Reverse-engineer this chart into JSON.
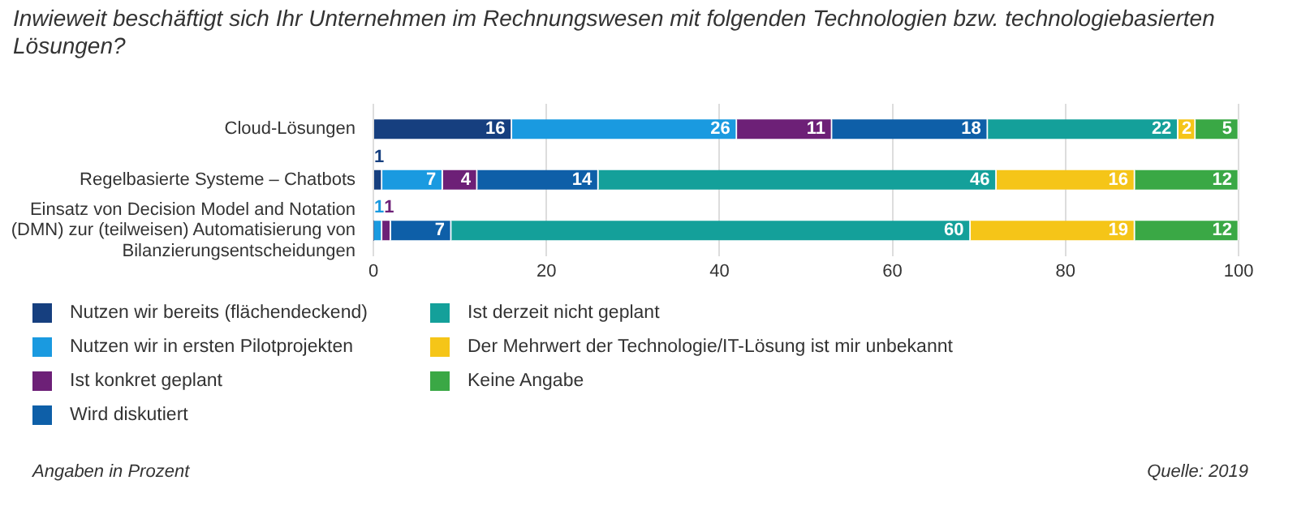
{
  "chart_data": {
    "type": "bar",
    "orientation": "horizontal",
    "stacked": true,
    "title": "Inwieweit beschäftigt sich Ihr Unternehmen im Rechnungswesen mit folgenden Technologien bzw. technologiebasierten Lösungen?",
    "categories": [
      "Cloud-Lösungen",
      "Regelbasierte Systeme – Chatbots",
      "Einsatz von Decision Model and Notation (DMN) zur (teilweisen) Automatisierung von Bilanzierungsentscheidungen"
    ],
    "series": [
      {
        "name": "Nutzen wir bereits (flächendeckend)",
        "color": "#163f7f",
        "values": [
          16,
          1,
          0
        ],
        "value_labels": [
          "16",
          "1",
          null
        ]
      },
      {
        "name": "Nutzen wir in ersten Pilotprojekten",
        "color": "#1a9ae0",
        "values": [
          26,
          7,
          1
        ],
        "value_labels": [
          "26",
          "7",
          "1"
        ]
      },
      {
        "name": "Ist konkret geplant",
        "color": "#6d2077",
        "values": [
          11,
          4,
          1
        ],
        "value_labels": [
          "11",
          "4",
          "1"
        ]
      },
      {
        "name": "Wird diskutiert",
        "color": "#0e5fa8",
        "values": [
          18,
          14,
          7
        ],
        "value_labels": [
          "18",
          "14",
          "7"
        ]
      },
      {
        "name": "Ist derzeit nicht geplant",
        "color": "#14a09a",
        "values": [
          22,
          46,
          60
        ],
        "value_labels": [
          "22",
          "46",
          "60"
        ]
      },
      {
        "name": "Der Mehrwert der Technologie/IT-Lösung ist mir unbekannt",
        "color": "#f5c518",
        "values": [
          2,
          16,
          19
        ],
        "value_labels": [
          "2",
          "16",
          "19"
        ]
      },
      {
        "name": "Keine Angabe",
        "color": "#3aa845",
        "values": [
          5,
          12,
          12
        ],
        "value_labels": [
          "5",
          "12",
          "12"
        ]
      }
    ],
    "xlim": [
      0,
      100
    ],
    "xticks": [
      0,
      20,
      40,
      60,
      80,
      100
    ],
    "grid": "x",
    "legend": "bottom",
    "annotations": [
      "Angaben in Prozent",
      "Quelle: 2019"
    ]
  }
}
